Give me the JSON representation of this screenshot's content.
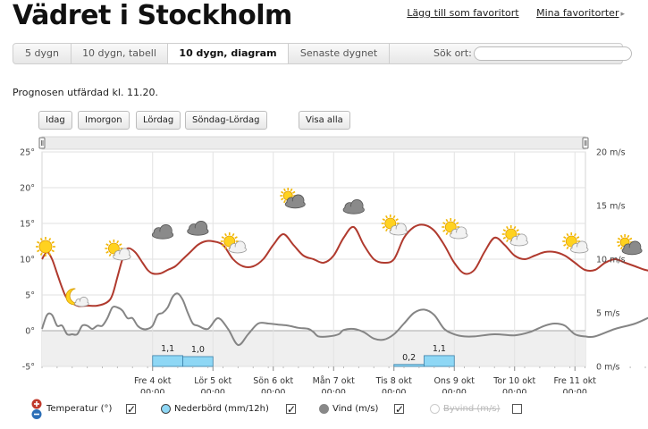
{
  "header": {
    "title": "Vädret i Stockholm",
    "links": [
      {
        "label": "Lägg till som favoritort"
      },
      {
        "label": "Mina favoritorter"
      }
    ]
  },
  "tabs": [
    {
      "label": "5 dygn",
      "active": false
    },
    {
      "label": "10 dygn, tabell",
      "active": false
    },
    {
      "label": "10 dygn, diagram",
      "active": true
    },
    {
      "label": "Senaste dygnet",
      "active": false
    }
  ],
  "search": {
    "label": "Sök ort:",
    "value": ""
  },
  "issued": "Prognosen utfärdad kl. 11.20.",
  "range_buttons": [
    "Idag",
    "Imorgon",
    "Lördag",
    "Söndag-Lördag",
    "Visa alla"
  ],
  "chart_data": {
    "type": "line",
    "y_left": {
      "unit": "°",
      "min": -5,
      "max": 25,
      "ticks": [
        "25°",
        "20°",
        "15°",
        "10°",
        "5°",
        "0°",
        "-5°"
      ]
    },
    "y_right": {
      "unit": "m/s",
      "min": 0,
      "max": 20,
      "ticks": [
        "20 m/s",
        "15 m/s",
        "10 m/s",
        "5 m/s",
        "0 m/s"
      ]
    },
    "x_labels": [
      {
        "day": "Fre 4 okt",
        "time": "00:00"
      },
      {
        "day": "Lör 5 okt",
        "time": "00:00"
      },
      {
        "day": "Sön 6 okt",
        "time": "00:00"
      },
      {
        "day": "Mån 7 okt",
        "time": "00:00"
      },
      {
        "day": "Tis 8 okt",
        "time": "00:00"
      },
      {
        "day": "Ons 9 okt",
        "time": "00:00"
      },
      {
        "day": "Tor 10 okt",
        "time": "00:00"
      },
      {
        "day": "Fre 11 okt",
        "time": "00:00"
      }
    ],
    "start_hour_offset": -44,
    "series": [
      {
        "name": "Temperatur (°)",
        "color": "#b03a2e",
        "points": [
          [
            -44,
            10
          ],
          [
            -42,
            11
          ],
          [
            -40,
            10
          ],
          [
            -38,
            8
          ],
          [
            -36,
            6
          ],
          [
            -34,
            4.5
          ],
          [
            -30,
            3.5
          ],
          [
            -26,
            3.5
          ],
          [
            -22,
            3.5
          ],
          [
            -18,
            4
          ],
          [
            -16,
            5
          ],
          [
            -14,
            7.5
          ],
          [
            -12,
            10
          ],
          [
            -10,
            11.5
          ],
          [
            -7,
            11
          ],
          [
            -4,
            9.5
          ],
          [
            -2,
            8.5
          ],
          [
            0,
            8
          ],
          [
            3,
            8
          ],
          [
            6,
            8.5
          ],
          [
            9,
            9
          ],
          [
            12,
            10
          ],
          [
            15,
            11
          ],
          [
            18,
            12
          ],
          [
            21,
            12.5
          ],
          [
            24,
            12.5
          ],
          [
            28,
            12
          ],
          [
            32,
            10
          ],
          [
            36,
            9
          ],
          [
            40,
            9
          ],
          [
            44,
            10
          ],
          [
            48,
            12
          ],
          [
            52,
            13.5
          ],
          [
            56,
            12
          ],
          [
            60,
            10.5
          ],
          [
            64,
            10
          ],
          [
            68,
            9.5
          ],
          [
            72,
            10.5
          ],
          [
            76,
            13
          ],
          [
            80,
            14.5
          ],
          [
            84,
            12
          ],
          [
            88,
            10
          ],
          [
            92,
            9.5
          ],
          [
            96,
            10
          ],
          [
            100,
            13
          ],
          [
            104,
            14.5
          ],
          [
            108,
            14.8
          ],
          [
            112,
            14
          ],
          [
            116,
            12
          ],
          [
            120,
            9.5
          ],
          [
            124,
            8
          ],
          [
            128,
            8.5
          ],
          [
            132,
            11
          ],
          [
            136,
            13
          ],
          [
            140,
            12
          ],
          [
            144,
            10.5
          ],
          [
            148,
            10
          ],
          [
            152,
            10.5
          ],
          [
            156,
            11
          ],
          [
            160,
            11
          ],
          [
            164,
            10.5
          ],
          [
            168,
            9.5
          ],
          [
            172,
            8.5
          ],
          [
            176,
            8.5
          ],
          [
            180,
            9.5
          ],
          [
            184,
            10
          ],
          [
            188,
            9.5
          ],
          [
            192,
            9
          ],
          [
            196,
            8.5
          ],
          [
            200,
            8.3
          ],
          [
            204,
            8.5
          ],
          [
            208,
            9.5
          ],
          [
            212,
            10
          ],
          [
            214,
            10
          ]
        ]
      },
      {
        "name": "Vind (m/s)",
        "color": "#858585",
        "points": [
          [
            -44,
            3.5
          ],
          [
            -42,
            4.8
          ],
          [
            -40,
            4.8
          ],
          [
            -38,
            3.8
          ],
          [
            -36,
            3.8
          ],
          [
            -34,
            3
          ],
          [
            -32,
            3
          ],
          [
            -30,
            3
          ],
          [
            -28,
            3.8
          ],
          [
            -26,
            3.8
          ],
          [
            -24,
            3.5
          ],
          [
            -22,
            3.8
          ],
          [
            -20,
            3.8
          ],
          [
            -18,
            4.5
          ],
          [
            -16,
            5.5
          ],
          [
            -14,
            5.5
          ],
          [
            -12,
            5.2
          ],
          [
            -10,
            4.5
          ],
          [
            -8,
            4.5
          ],
          [
            -6,
            3.8
          ],
          [
            -4,
            3.5
          ],
          [
            -2,
            3.5
          ],
          [
            0,
            3.8
          ],
          [
            2,
            4.8
          ],
          [
            4,
            5
          ],
          [
            6,
            5.5
          ],
          [
            8,
            6.5
          ],
          [
            10,
            6.8
          ],
          [
            12,
            6.2
          ],
          [
            14,
            5
          ],
          [
            16,
            4
          ],
          [
            18,
            3.8
          ],
          [
            22,
            3.5
          ],
          [
            26,
            4.5
          ],
          [
            30,
            3.5
          ],
          [
            34,
            2
          ],
          [
            38,
            3
          ],
          [
            42,
            4
          ],
          [
            46,
            4
          ],
          [
            50,
            3.9
          ],
          [
            54,
            3.8
          ],
          [
            58,
            3.6
          ],
          [
            62,
            3.5
          ],
          [
            64,
            3.2
          ],
          [
            66,
            2.8
          ],
          [
            70,
            2.8
          ],
          [
            74,
            3
          ],
          [
            76,
            3.4
          ],
          [
            80,
            3.5
          ],
          [
            84,
            3.2
          ],
          [
            88,
            2.6
          ],
          [
            92,
            2.5
          ],
          [
            96,
            3
          ],
          [
            100,
            4
          ],
          [
            104,
            5
          ],
          [
            108,
            5.3
          ],
          [
            112,
            4.8
          ],
          [
            116,
            3.5
          ],
          [
            120,
            3
          ],
          [
            124,
            2.8
          ],
          [
            128,
            2.8
          ],
          [
            136,
            3
          ],
          [
            144,
            2.9
          ],
          [
            150,
            3.2
          ],
          [
            156,
            3.8
          ],
          [
            160,
            4
          ],
          [
            164,
            3.8
          ],
          [
            168,
            3
          ],
          [
            172,
            2.8
          ],
          [
            176,
            2.8
          ],
          [
            184,
            3.5
          ],
          [
            192,
            4
          ],
          [
            200,
            4.8
          ],
          [
            206,
            5
          ],
          [
            214,
            5
          ]
        ]
      },
      {
        "name": "Nederbörd (mm/12h)",
        "color": "#8ed7f5",
        "bars": [
          {
            "from": 0,
            "to": 12,
            "value": 1.1,
            "label": "1,1"
          },
          {
            "from": 12,
            "to": 24,
            "value": 1.0,
            "label": "1,0"
          },
          {
            "from": 96,
            "to": 108,
            "value": 0.2,
            "label": "0,2"
          },
          {
            "from": 108,
            "to": 120,
            "value": 1.1,
            "label": "1,1"
          }
        ]
      }
    ],
    "weather_icons": [
      {
        "hour": -44,
        "temp": 10.5,
        "icon": "sun-icon"
      },
      {
        "hour": -30,
        "temp": 3.5,
        "icon": "moon-cloud-icon"
      },
      {
        "hour": -14,
        "temp": 10,
        "icon": "sun-cloud-icon"
      },
      {
        "hour": 4,
        "temp": 12.5,
        "icon": "cloud-icon"
      },
      {
        "hour": 18,
        "temp": 13,
        "icon": "cloud-icon"
      },
      {
        "hour": 32,
        "temp": 11,
        "icon": "sun-cloud-icon"
      },
      {
        "hour": 56,
        "temp": 17,
        "icon": "cloud-sun-icon"
      },
      {
        "hour": 80,
        "temp": 16,
        "icon": "cloud-icon"
      },
      {
        "hour": 96,
        "temp": 13.5,
        "icon": "sun-cloud-icon"
      },
      {
        "hour": 120,
        "temp": 13,
        "icon": "sun-cloud-icon"
      },
      {
        "hour": 144,
        "temp": 12,
        "icon": "sun-cloud-icon"
      },
      {
        "hour": 168,
        "temp": 11,
        "icon": "sun-cloud-icon"
      },
      {
        "hour": 190,
        "temp": 10.5,
        "icon": "cloud-sun-icon"
      }
    ]
  },
  "legend": [
    {
      "label": "Temperatur (°)",
      "checked": true,
      "disabled": false,
      "color": "#c0392b"
    },
    {
      "label": "Nederbörd (mm/12h)",
      "checked": true,
      "disabled": false,
      "color": "#8ed7f5"
    },
    {
      "label": "Vind (m/s)",
      "checked": true,
      "disabled": false,
      "color": "#888888"
    },
    {
      "label": "Byvind (m/s)",
      "checked": false,
      "disabled": true,
      "color": "#cccccc"
    }
  ]
}
